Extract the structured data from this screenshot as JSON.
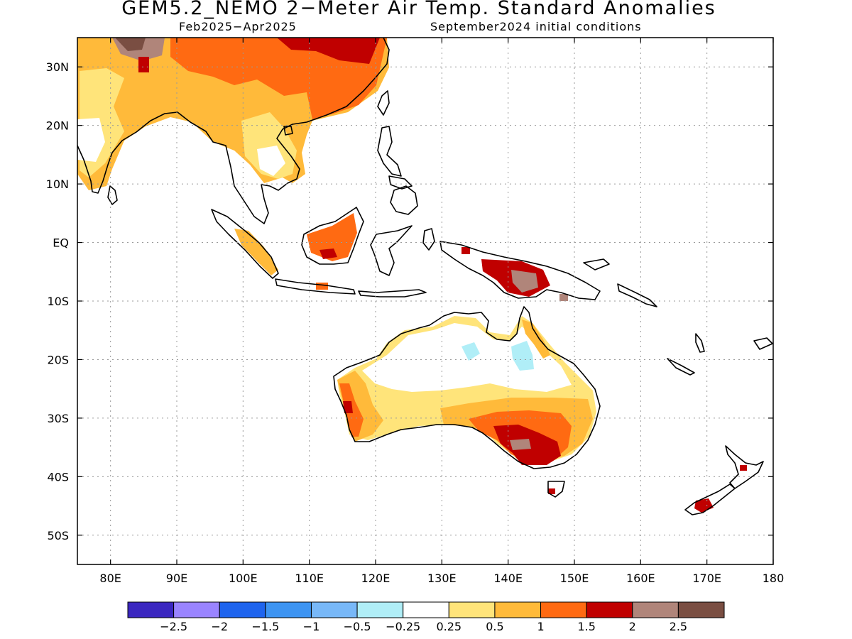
{
  "title": "GEM5.2_NEMO 2−Meter Air Temp. Standard Anomalies",
  "period": "Feb2025−Apr2025",
  "initial_conditions": "September2024 initial conditions",
  "map": {
    "lon_range": [
      75,
      180
    ],
    "lat_range": [
      -55,
      35
    ],
    "lon_ticks": [
      80,
      90,
      100,
      110,
      120,
      130,
      140,
      150,
      160,
      170,
      180
    ],
    "lon_tick_labels": [
      "80E",
      "90E",
      "100E",
      "110E",
      "120E",
      "130E",
      "140E",
      "150E",
      "160E",
      "170E",
      "180"
    ],
    "lat_ticks": [
      30,
      20,
      10,
      0,
      -10,
      -20,
      -30,
      -40,
      -50
    ],
    "lat_tick_labels": [
      "30N",
      "20N",
      "10N",
      "EQ",
      "10S",
      "20S",
      "30S",
      "40S",
      "50S"
    ],
    "grid": "dotted"
  },
  "colorbar": {
    "colors": [
      "#3b27c0",
      "#9a84ff",
      "#1e64ee",
      "#3d94f2",
      "#78b8f8",
      "#b0eef7",
      "#ffffff",
      "#ffe47a",
      "#ffba3a",
      "#ff6a12",
      "#c00000",
      "#b0857a",
      "#7a4e42"
    ],
    "labels": [
      "−2.5",
      "−2",
      "−1.5",
      "−1",
      "−0.5",
      "−0.25",
      "0.25",
      "0.5",
      "1",
      "1.5",
      "2",
      "2.5"
    ]
  }
}
